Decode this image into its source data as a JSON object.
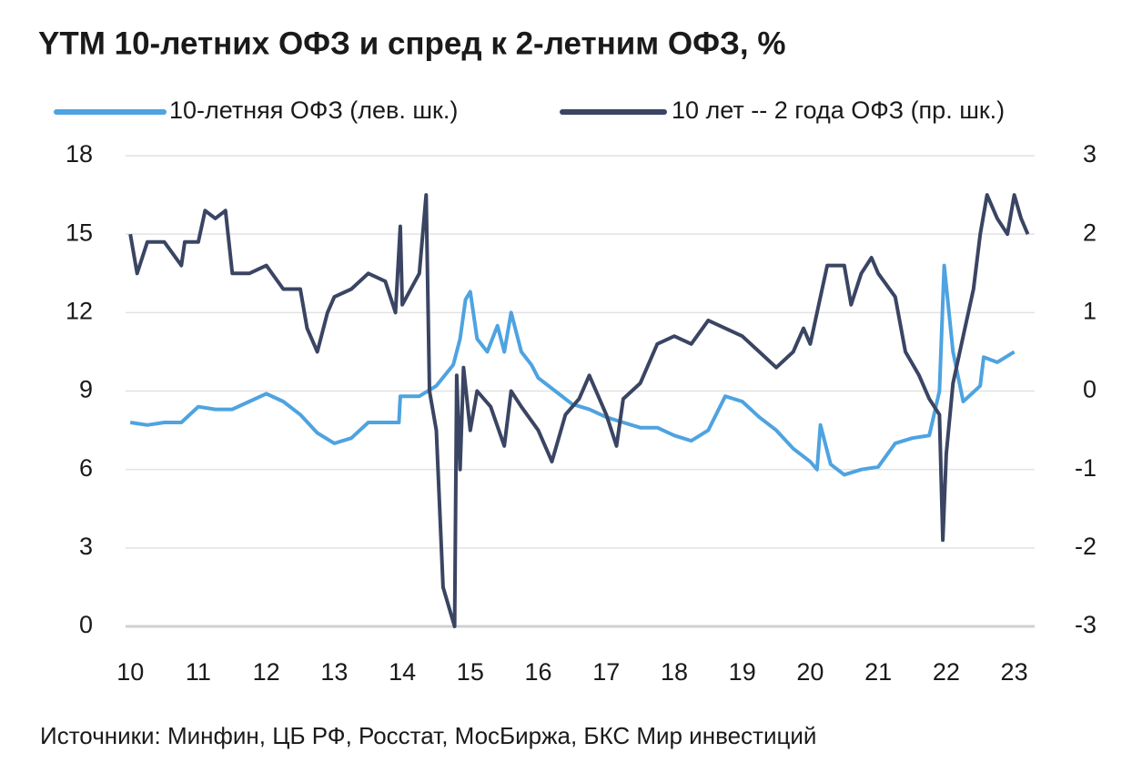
{
  "chart_data": {
    "type": "line",
    "title": "YTM 10-летних ОФЗ и спред к 2-летним ОФЗ, %",
    "source": "Источники: Минфин, ЦБ РФ, Росстат, МосБиржа, БКС Мир инвестиций",
    "xlim": [
      9.93,
      23.3
    ],
    "xticks": [
      10,
      11,
      12,
      13,
      14,
      15,
      16,
      17,
      18,
      19,
      20,
      21,
      22,
      23
    ],
    "ylim": [
      0,
      18
    ],
    "yticks": [
      0,
      3,
      6,
      9,
      12,
      15,
      18
    ],
    "y2lim": [
      -3,
      3
    ],
    "y2ticks": [
      -3,
      -2,
      -1,
      0,
      1,
      2,
      3
    ],
    "grid": true,
    "legend": "top",
    "series": [
      {
        "name": "10-летняя ОФЗ (лев. шк.)",
        "color": "#4ea3e0",
        "axis": "y",
        "x": [
          10.0,
          10.25,
          10.5,
          10.75,
          11.0,
          11.25,
          11.5,
          11.75,
          12.0,
          12.25,
          12.5,
          12.75,
          13.0,
          13.25,
          13.5,
          13.75,
          13.95,
          13.97,
          14.25,
          14.5,
          14.75,
          14.85,
          14.93,
          15.0,
          15.1,
          15.25,
          15.4,
          15.5,
          15.6,
          15.75,
          15.9,
          16.0,
          16.25,
          16.5,
          16.75,
          17.0,
          17.25,
          17.5,
          17.75,
          18.0,
          18.25,
          18.5,
          18.75,
          19.0,
          19.25,
          19.5,
          19.75,
          20.0,
          20.1,
          20.15,
          20.3,
          20.5,
          20.75,
          21.0,
          21.25,
          21.5,
          21.75,
          21.9,
          21.97,
          22.1,
          22.25,
          22.5,
          22.55,
          22.75,
          23.0
        ],
        "values": [
          7.8,
          7.7,
          7.8,
          7.8,
          8.4,
          8.3,
          8.3,
          8.6,
          8.9,
          8.6,
          8.1,
          7.4,
          7.0,
          7.2,
          7.8,
          7.8,
          7.8,
          8.8,
          8.8,
          9.2,
          10.0,
          11.0,
          12.5,
          12.8,
          11.0,
          10.5,
          11.5,
          10.5,
          12.0,
          10.5,
          10.0,
          9.5,
          9.0,
          8.5,
          8.3,
          8.0,
          7.8,
          7.6,
          7.6,
          7.3,
          7.1,
          7.5,
          8.8,
          8.6,
          8.0,
          7.5,
          6.8,
          6.3,
          6.0,
          7.7,
          6.2,
          5.8,
          6.0,
          6.1,
          7.0,
          7.2,
          7.3,
          9.0,
          13.8,
          10.5,
          8.6,
          9.2,
          10.3,
          10.1,
          10.5
        ]
      },
      {
        "name": "10 лет -- 2 года ОФЗ (пр. шк.)",
        "color": "#3a4563",
        "axis": "y2",
        "x": [
          10.0,
          10.1,
          10.25,
          10.5,
          10.75,
          10.8,
          11.0,
          11.1,
          11.25,
          11.4,
          11.5,
          11.75,
          12.0,
          12.25,
          12.5,
          12.6,
          12.75,
          12.9,
          13.0,
          13.25,
          13.5,
          13.75,
          13.9,
          13.97,
          14.0,
          14.25,
          14.35,
          14.4,
          14.5,
          14.6,
          14.77,
          14.8,
          14.85,
          14.9,
          15.0,
          15.1,
          15.3,
          15.5,
          15.6,
          15.75,
          16.0,
          16.2,
          16.4,
          16.6,
          16.75,
          17.0,
          17.15,
          17.25,
          17.5,
          17.75,
          18.0,
          18.25,
          18.5,
          18.75,
          19.0,
          19.25,
          19.5,
          19.75,
          19.9,
          20.0,
          20.25,
          20.5,
          20.6,
          20.75,
          20.9,
          21.0,
          21.25,
          21.4,
          21.6,
          21.75,
          21.9,
          21.95,
          22.0,
          22.1,
          22.25,
          22.4,
          22.5,
          22.6,
          22.75,
          22.9,
          23.0,
          23.1,
          23.2
        ],
        "values": [
          2.0,
          1.5,
          1.9,
          1.9,
          1.6,
          1.9,
          1.9,
          2.3,
          2.2,
          2.3,
          1.5,
          1.5,
          1.6,
          1.3,
          1.3,
          0.8,
          0.5,
          1.0,
          1.2,
          1.3,
          1.5,
          1.4,
          1.0,
          2.1,
          1.1,
          1.5,
          2.5,
          0.0,
          -0.5,
          -2.5,
          -3.0,
          0.2,
          -1.0,
          0.3,
          -0.5,
          0.0,
          -0.2,
          -0.7,
          0.0,
          -0.2,
          -0.5,
          -0.9,
          -0.3,
          -0.1,
          0.2,
          -0.3,
          -0.7,
          -0.1,
          0.1,
          0.6,
          0.7,
          0.6,
          0.9,
          0.8,
          0.7,
          0.5,
          0.3,
          0.5,
          0.8,
          0.6,
          1.6,
          1.6,
          1.1,
          1.5,
          1.7,
          1.5,
          1.2,
          0.5,
          0.2,
          -0.1,
          -0.3,
          -1.9,
          -0.8,
          0.1,
          0.7,
          1.3,
          2.0,
          2.5,
          2.2,
          2.0,
          2.5,
          2.2,
          2.0
        ]
      }
    ]
  }
}
